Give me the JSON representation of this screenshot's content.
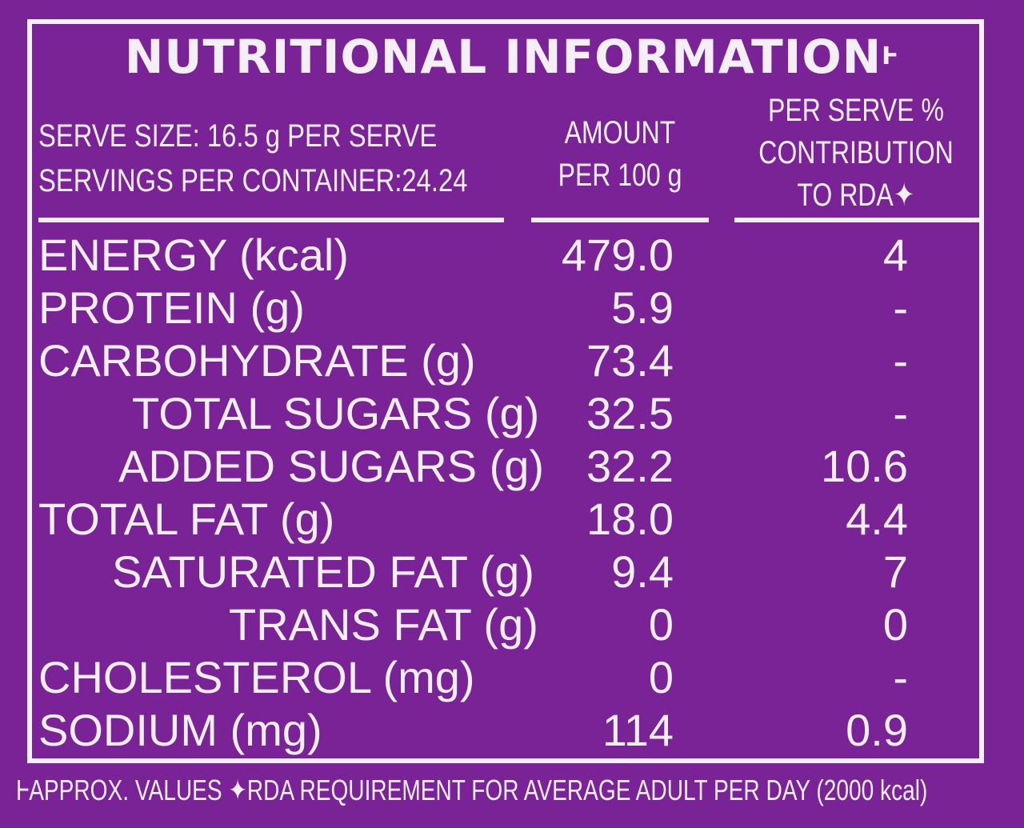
{
  "title": "NUTRITIONAL INFORMATION",
  "title_mark": "Ⱶ",
  "serve_size": "SERVE SIZE: 16.5 g PER SERVE",
  "servings": "SERVINGS PER CONTAINER:24.24",
  "header_amount": [
    "AMOUNT",
    "PER 100 g"
  ],
  "header_rda": [
    "PER SERVE %",
    "CONTRIBUTION",
    "TO RDA✦"
  ],
  "rows": [
    {
      "name": "ENERGY (kcal)",
      "amount": "479.0",
      "rda": "4"
    },
    {
      "name": "PROTEIN (g)",
      "amount": "5.9",
      "rda": "-"
    },
    {
      "name": "CARBOHYDRATE (g)",
      "amount": "73.4",
      "rda": "-"
    },
    {
      "name": "TOTAL SUGARS (g)",
      "amount": "32.5",
      "rda": "-"
    },
    {
      "name": "ADDED SUGARS (g)",
      "amount": "32.2",
      "rda": "10.6"
    },
    {
      "name": "TOTAL FAT (g)",
      "amount": "18.0",
      "rda": "4.4"
    },
    {
      "name": "SATURATED FAT (g)",
      "amount": "9.4",
      "rda": "7"
    },
    {
      "name": "TRANS FAT (g)",
      "amount": "0",
      "rda": "0"
    },
    {
      "name": "CHOLESTEROL (mg)",
      "amount": "0",
      "rda": "-"
    },
    {
      "name": "SODIUM (mg)",
      "amount": "114",
      "rda": "0.9"
    }
  ],
  "footnote": "ⱵAPPROX. VALUES ✦RDA REQUIREMENT FOR AVERAGE ADULT PER DAY (2000 kcal)",
  "colors": {
    "background": "#7a2396",
    "text": "#f4eef6"
  }
}
